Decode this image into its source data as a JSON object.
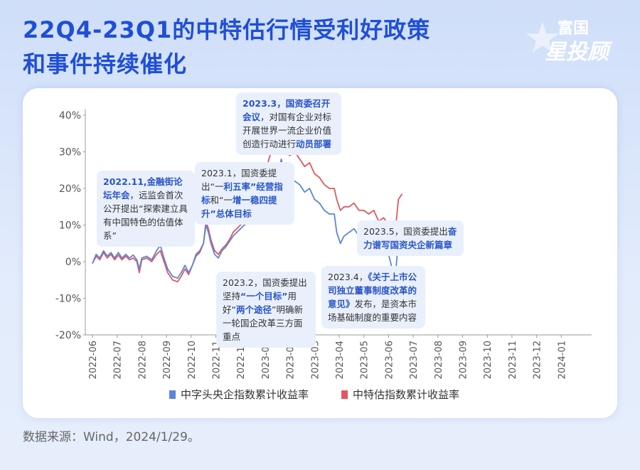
{
  "title_line1": "22Q4-23Q1的中特估行情受利好政策",
  "title_line2": "和事件持续催化",
  "logo": {
    "line1": "富国",
    "line2": "星投顾"
  },
  "source": "数据来源：Wind，2024/1/29。",
  "annotations": [
    {
      "id": "a1",
      "pre": "",
      "hl": "2022.11,金融街论坛年会",
      "post": "，远监会首次公开提出“探索建立具有中国特色的估值体系”"
    },
    {
      "id": "a2",
      "pre": "2023.1，国资委提出“一",
      "hl": "利五率”经营指标",
      "post": "和“一",
      "hl2": "增一稳四提升”总体目标",
      "post2": ""
    },
    {
      "id": "a3",
      "pre": "",
      "hl": "2023.3，国资委召开会议",
      "post": "，对国有企业对标开展世界一流企业价值创造行动进行",
      "hl2": "动员部署",
      "post2": ""
    },
    {
      "id": "a4",
      "pre": "2023.2，国资委提出坚持",
      "hl": "“一个目标”",
      "post": "用好“",
      "hl2": "两个途径",
      "post2": "”明确新一轮国企改革三方面重点"
    },
    {
      "id": "a5",
      "pre": "2023.4，",
      "hl": "《关于上市公司独立董事制度改革的意见》",
      "post": "发布，是资本市场基础制度的重要内容"
    },
    {
      "id": "a6",
      "pre": "2023.5，国资委提出",
      "hl": "奋力谱写国资央企新篇章",
      "post": ""
    }
  ],
  "colors": {
    "blue": "#5b86d6",
    "red": "#e2575f",
    "title": "#1f4fd6"
  },
  "chart_data": {
    "type": "line",
    "x_ticks": [
      "2022-06",
      "2022-07",
      "2022-08",
      "2022-09",
      "2022-10",
      "2022-11",
      "2022-12",
      "2023-01",
      "2023-02",
      "2023-03",
      "2023-04",
      "2023-05",
      "2023-06",
      "2023-07",
      "2023-08",
      "2023-09",
      "2023-10",
      "2023-11",
      "2023-12",
      "2024-01"
    ],
    "y_ticks": [
      "40%",
      "30%",
      "20%",
      "10%",
      "0%",
      "-10%",
      "-20%"
    ],
    "ylim": [
      -20,
      40
    ],
    "legend": [
      "中字头央企指数累计收益率",
      "中特估指数累计收益率"
    ],
    "series": [
      {
        "name": "中字头央企指数累计收益率",
        "points": [
          [
            0,
            -0.5
          ],
          [
            0.15,
            2
          ],
          [
            0.3,
            1
          ],
          [
            0.45,
            3
          ],
          [
            0.6,
            1.5
          ],
          [
            0.75,
            2.5
          ],
          [
            0.9,
            1
          ],
          [
            1.05,
            2.5
          ],
          [
            1.2,
            1
          ],
          [
            1.35,
            2
          ],
          [
            1.5,
            1
          ],
          [
            1.65,
            1.8
          ],
          [
            1.8,
            0.5
          ],
          [
            1.9,
            -2
          ],
          [
            2.0,
            1
          ],
          [
            2.2,
            1.5
          ],
          [
            2.4,
            0.5
          ],
          [
            2.6,
            3
          ],
          [
            2.75,
            4.5
          ],
          [
            2.9,
            1
          ],
          [
            3.05,
            -2
          ],
          [
            3.25,
            -4
          ],
          [
            3.45,
            -4.5
          ],
          [
            3.6,
            -3
          ],
          [
            3.75,
            -1
          ],
          [
            3.9,
            -3
          ],
          [
            4.05,
            -1
          ],
          [
            4.2,
            2
          ],
          [
            4.35,
            3
          ],
          [
            4.5,
            5
          ],
          [
            4.6,
            10
          ],
          [
            4.7,
            8
          ],
          [
            4.8,
            5
          ],
          [
            4.95,
            2
          ],
          [
            5.1,
            1
          ],
          [
            5.25,
            3
          ],
          [
            5.4,
            4
          ],
          [
            5.55,
            5.5
          ],
          [
            5.7,
            7
          ],
          [
            5.85,
            8
          ],
          [
            6.0,
            9
          ],
          [
            6.15,
            10
          ],
          [
            6.3,
            10.5
          ],
          [
            6.45,
            15
          ],
          [
            6.55,
            18
          ],
          [
            6.7,
            17
          ],
          [
            6.85,
            15
          ],
          [
            7.0,
            16
          ],
          [
            7.15,
            19
          ],
          [
            7.3,
            21
          ],
          [
            7.45,
            22
          ],
          [
            7.55,
            24
          ],
          [
            7.65,
            28
          ],
          [
            7.75,
            25
          ],
          [
            7.85,
            22
          ],
          [
            8.0,
            21
          ],
          [
            8.2,
            22
          ],
          [
            8.4,
            21
          ],
          [
            8.6,
            19
          ],
          [
            8.8,
            20
          ],
          [
            9.0,
            17
          ],
          [
            9.2,
            16
          ],
          [
            9.4,
            14
          ],
          [
            9.6,
            13
          ],
          [
            9.8,
            13
          ],
          [
            9.9,
            8
          ],
          [
            10.05,
            5
          ],
          [
            10.2,
            7
          ],
          [
            10.4,
            8
          ],
          [
            10.6,
            9
          ],
          [
            10.8,
            7
          ],
          [
            11.0,
            7
          ],
          [
            11.2,
            6
          ],
          [
            11.4,
            6.5
          ],
          [
            11.6,
            3
          ],
          [
            11.8,
            4
          ],
          [
            12.0,
            2
          ],
          [
            12.15,
            -2
          ],
          [
            12.25,
            -6
          ],
          [
            12.4,
            6
          ],
          [
            12.55,
            8
          ]
        ]
      },
      {
        "name": "中特估指数累计收益率",
        "points": [
          [
            0,
            -0.5
          ],
          [
            0.15,
            1.5
          ],
          [
            0.3,
            0.5
          ],
          [
            0.45,
            2.5
          ],
          [
            0.6,
            1
          ],
          [
            0.75,
            2
          ],
          [
            0.9,
            0.5
          ],
          [
            1.05,
            1.8
          ],
          [
            1.2,
            0.5
          ],
          [
            1.35,
            1.5
          ],
          [
            1.5,
            0.5
          ],
          [
            1.65,
            1
          ],
          [
            1.8,
            0
          ],
          [
            1.9,
            -3
          ],
          [
            2.0,
            0.5
          ],
          [
            2.2,
            1
          ],
          [
            2.4,
            0
          ],
          [
            2.6,
            2
          ],
          [
            2.75,
            3
          ],
          [
            2.9,
            0
          ],
          [
            3.05,
            -3
          ],
          [
            3.25,
            -5
          ],
          [
            3.45,
            -5.5
          ],
          [
            3.6,
            -4
          ],
          [
            3.75,
            -2
          ],
          [
            3.9,
            -3.5
          ],
          [
            4.05,
            -1
          ],
          [
            4.2,
            1.5
          ],
          [
            4.35,
            2.5
          ],
          [
            4.5,
            5
          ],
          [
            4.6,
            11
          ],
          [
            4.7,
            9
          ],
          [
            4.8,
            6
          ],
          [
            4.95,
            3
          ],
          [
            5.1,
            2
          ],
          [
            5.25,
            3.5
          ],
          [
            5.4,
            4.5
          ],
          [
            5.55,
            6
          ],
          [
            5.7,
            8
          ],
          [
            5.85,
            9
          ],
          [
            6.0,
            10
          ],
          [
            6.15,
            11
          ],
          [
            6.3,
            13
          ],
          [
            6.45,
            20
          ],
          [
            6.55,
            24
          ],
          [
            6.7,
            23
          ],
          [
            6.85,
            22
          ],
          [
            7.0,
            24
          ],
          [
            7.15,
            28
          ],
          [
            7.3,
            31
          ],
          [
            7.45,
            33
          ],
          [
            7.55,
            35
          ],
          [
            7.65,
            38
          ],
          [
            7.75,
            33
          ],
          [
            7.85,
            30
          ],
          [
            8.0,
            29
          ],
          [
            8.2,
            30
          ],
          [
            8.4,
            28
          ],
          [
            8.6,
            26
          ],
          [
            8.8,
            27
          ],
          [
            9.0,
            24
          ],
          [
            9.2,
            23
          ],
          [
            9.4,
            21
          ],
          [
            9.6,
            20
          ],
          [
            9.8,
            20
          ],
          [
            9.9,
            17
          ],
          [
            10.05,
            14
          ],
          [
            10.2,
            15
          ],
          [
            10.4,
            15
          ],
          [
            10.6,
            16
          ],
          [
            10.8,
            14
          ],
          [
            11.0,
            14
          ],
          [
            11.2,
            13
          ],
          [
            11.4,
            14
          ],
          [
            11.6,
            11
          ],
          [
            11.8,
            12
          ],
          [
            12.0,
            10
          ],
          [
            12.15,
            8
          ],
          [
            12.25,
            7
          ],
          [
            12.4,
            17
          ],
          [
            12.55,
            18.5
          ]
        ]
      }
    ]
  }
}
